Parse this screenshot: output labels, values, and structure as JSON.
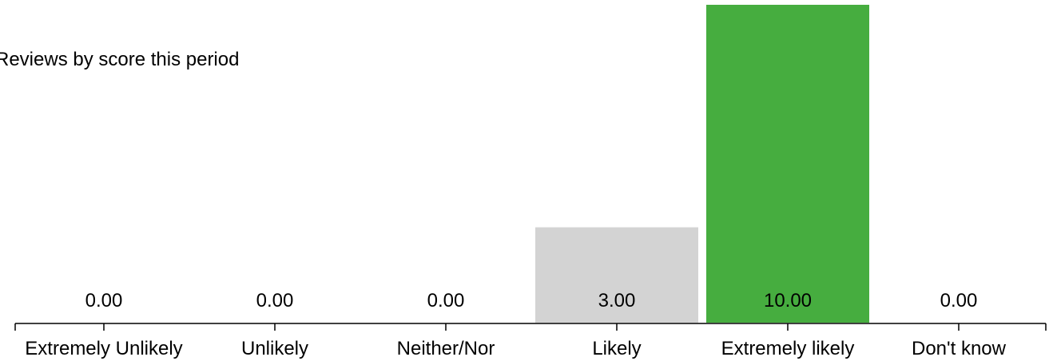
{
  "chart_data": {
    "type": "bar",
    "title": "",
    "subtitle": "Reviews by score this period",
    "xlabel": "",
    "ylabel": "",
    "categories": [
      "Extremely Unlikely",
      "Unlikely",
      "Neither/Nor",
      "Likely",
      "Extremely likely",
      "Don't know"
    ],
    "values": [
      0,
      0,
      0,
      3,
      10,
      0
    ],
    "value_labels": [
      "0.00",
      "0.00",
      "0.00",
      "3.00",
      "10.00",
      "0.00"
    ],
    "bar_colors": [
      "#d3d3d3",
      "#d3d3d3",
      "#d3d3d3",
      "#d3d3d3",
      "#46ad3f",
      "#d3d3d3"
    ],
    "ylim": [
      0,
      10
    ],
    "grid": false,
    "legend": "none"
  }
}
